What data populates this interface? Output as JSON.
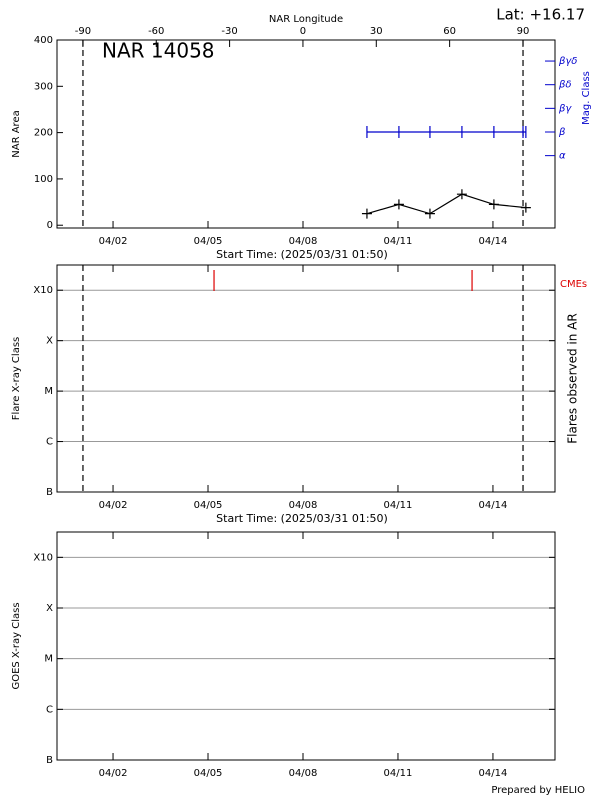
{
  "chart_data": [
    {
      "type": "line",
      "annotation": "NAR 14058",
      "corner_text": "Lat: +16.17",
      "x_label": "Start Time: (2025/03/31 01:50)",
      "x2_label": "NAR Longitude",
      "y_label": "NAR Area",
      "y2_label": "Mag. Class",
      "y2_color": "#0000cc",
      "xlim": [
        0.23,
        15.96
      ],
      "xticks": [
        {
          "value": 2,
          "label": "04/02"
        },
        {
          "value": 5,
          "label": "04/05"
        },
        {
          "value": 8,
          "label": "04/08"
        },
        {
          "value": 11,
          "label": "04/11"
        },
        {
          "value": 14,
          "label": "04/14"
        }
      ],
      "x2lim": [
        -100.6,
        103.1
      ],
      "x2ticks": [
        -90,
        -60,
        -30,
        0,
        30,
        60,
        90
      ],
      "ylim": [
        -6,
        400
      ],
      "yticks": [
        0,
        100,
        200,
        300,
        400
      ],
      "y2lim": [
        -0.06,
        7.89
      ],
      "y2ticks": [
        {
          "value": 3,
          "label": "α"
        },
        {
          "value": 4,
          "label": "β"
        },
        {
          "value": 5,
          "label": "βγ"
        },
        {
          "value": 6,
          "label": "βδ"
        },
        {
          "value": 7,
          "label": "βγδ"
        }
      ],
      "vlines": [
        1.05,
        14.95
      ],
      "series": [
        {
          "color": "#000000",
          "x": [
            10.02,
            11.03,
            12.01,
            13.02,
            14.03,
            15.04
          ],
          "values": [
            25,
            45,
            25,
            67,
            45,
            38
          ]
        },
        {
          "color": "#0000cc",
          "axis": "y2",
          "x": [
            10.02,
            11.03,
            12.01,
            13.02,
            14.03,
            14.95,
            15.04
          ],
          "values": [
            4,
            4,
            4,
            4,
            4,
            4,
            4
          ]
        }
      ]
    },
    {
      "type": "line",
      "x_label": "Start Time: (2025/03/31 01:50)",
      "y_label": "Flare X-ray Class",
      "y2_label": "Flares observed in AR",
      "xlim": [
        0.23,
        15.96
      ],
      "xticks": [
        {
          "value": 2,
          "label": "04/02"
        },
        {
          "value": 5,
          "label": "04/05"
        },
        {
          "value": 8,
          "label": "04/08"
        },
        {
          "value": 11,
          "label": "04/11"
        },
        {
          "value": 14,
          "label": "04/14"
        }
      ],
      "ylim": [
        1,
        5.5
      ],
      "yticks": [
        {
          "value": 1,
          "label": "B"
        },
        {
          "value": 2,
          "label": "C"
        },
        {
          "value": 3,
          "label": "M"
        },
        {
          "value": 4,
          "label": "X"
        },
        {
          "value": 5,
          "label": "X10"
        }
      ],
      "grid": true,
      "vlines": [
        1.05,
        14.95
      ],
      "events": {
        "label": "CMEs",
        "color": "#dd0000",
        "x": [
          5.19,
          13.34
        ]
      }
    },
    {
      "type": "line",
      "y_label": "GOES X-ray Class",
      "xlim": [
        0.23,
        15.96
      ],
      "xticks": [
        {
          "value": 2,
          "label": "04/02"
        },
        {
          "value": 5,
          "label": "04/05"
        },
        {
          "value": 8,
          "label": "04/08"
        },
        {
          "value": 11,
          "label": "04/11"
        },
        {
          "value": 14,
          "label": "04/14"
        }
      ],
      "ylim": [
        1,
        5.5
      ],
      "yticks": [
        {
          "value": 1,
          "label": "B"
        },
        {
          "value": 2,
          "label": "C"
        },
        {
          "value": 3,
          "label": "M"
        },
        {
          "value": 4,
          "label": "X"
        },
        {
          "value": 5,
          "label": "X10"
        }
      ],
      "grid": true
    }
  ],
  "footer": "Prepared by HELIO"
}
